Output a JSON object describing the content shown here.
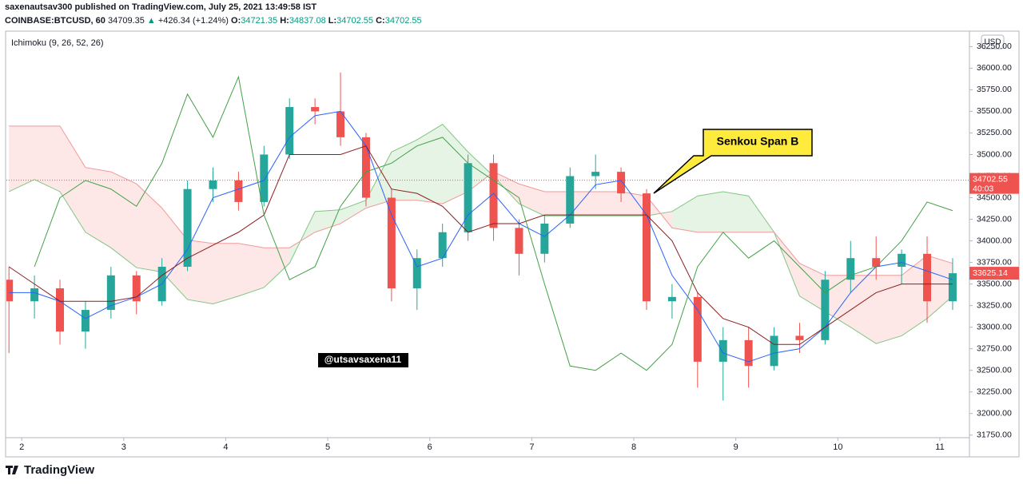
{
  "header": {
    "publisher": "saxenautsav300 published on TradingView.com, July 25, 2021 13:49:58 IST",
    "symbol": "COINBASE:BTCUSD, 60",
    "price": "34709.35",
    "arrow": "▲",
    "change": "+426.34 (+1.24%)",
    "o_label": "O:",
    "o": "34721.35",
    "h_label": "H:",
    "h": "34837.08",
    "l_label": "L:",
    "l": "34702.55",
    "c_label": "C:",
    "c": "34702.55"
  },
  "chart_data": {
    "type": "candlestick",
    "indicator": "Ichimoku (9, 26, 52, 26)",
    "currency": "USD",
    "annotation": "Senkou Span B",
    "watermark": "@utsavsaxena11",
    "brand": "TradingView",
    "grid": false,
    "up_color": "#26a69a",
    "down_color": "#ef5350",
    "x": [
      1.875,
      2.125,
      2.375,
      2.625,
      2.875,
      3.125,
      3.375,
      3.625,
      3.875,
      4.125,
      4.375,
      4.625,
      4.875,
      5.125,
      5.375,
      5.625,
      5.875,
      6.125,
      6.375,
      6.625,
      6.875,
      7.125,
      7.375,
      7.625,
      7.875,
      8.125,
      8.375,
      8.625,
      8.875,
      9.125,
      9.375,
      9.625,
      9.875,
      10.125,
      10.375,
      10.625,
      10.875,
      11.125
    ],
    "open": [
      33550,
      33300,
      33450,
      32950,
      33200,
      33600,
      33300,
      33700,
      34600,
      34700,
      34450,
      35000,
      35550,
      35500,
      35200,
      34500,
      33450,
      33800,
      34100,
      34900,
      34150,
      33850,
      34200,
      34750,
      34800,
      34550,
      33300,
      33350,
      32600,
      32850,
      32550,
      32900,
      32850,
      33550,
      33800,
      33700,
      33850,
      33300
    ],
    "high": [
      33700,
      33600,
      33550,
      33300,
      33700,
      33650,
      33800,
      34700,
      34850,
      34800,
      35100,
      35650,
      35650,
      35950,
      35250,
      34600,
      33900,
      34200,
      35000,
      35000,
      34250,
      34300,
      34850,
      35000,
      34850,
      34600,
      33500,
      33400,
      33000,
      33000,
      33000,
      33050,
      33650,
      34000,
      34050,
      33900,
      34050,
      33800
    ],
    "low": [
      32700,
      33100,
      32800,
      32750,
      33100,
      33150,
      33250,
      33650,
      34450,
      34350,
      34400,
      34950,
      35350,
      35100,
      34400,
      33300,
      33200,
      33700,
      34000,
      34000,
      33600,
      33750,
      34150,
      34600,
      34450,
      33200,
      33100,
      32300,
      32150,
      32300,
      32500,
      32700,
      32800,
      33400,
      33550,
      33500,
      33050,
      33200
    ],
    "close": [
      33300,
      33450,
      32950,
      33200,
      33600,
      33300,
      33700,
      34600,
      34700,
      34450,
      35000,
      35550,
      35500,
      35200,
      34500,
      33450,
      33800,
      34100,
      34900,
      34150,
      33850,
      34200,
      34750,
      34800,
      34550,
      33300,
      33350,
      32600,
      32850,
      32550,
      32900,
      32850,
      33550,
      33800,
      33700,
      33850,
      33300,
      33625
    ],
    "lines": [
      {
        "color": "#2962ff",
        "values": [
          33400,
          33400,
          33300,
          33100,
          33250,
          33350,
          33500,
          33900,
          34500,
          34600,
          34700,
          35200,
          35450,
          35500,
          35100,
          34300,
          33700,
          33800,
          34300,
          34550,
          34200,
          34050,
          34300,
          34650,
          34700,
          34300,
          33600,
          33200,
          32700,
          32600,
          32700,
          32750,
          33000,
          33400,
          33700,
          33750,
          33650,
          33550
        ]
      },
      {
        "color": "#8b1e1e",
        "values": [
          33700,
          33500,
          33300,
          33300,
          33300,
          33350,
          33600,
          33800,
          33950,
          34100,
          34300,
          35000,
          35000,
          35000,
          35100,
          34600,
          34550,
          34400,
          34100,
          34200,
          34200,
          34300,
          34300,
          34300,
          34300,
          34300,
          34000,
          33400,
          33100,
          33000,
          32800,
          32800,
          33000,
          33200,
          33400,
          33500,
          33500,
          33500
        ]
      },
      {
        "color": "#43a047",
        "values": [
          null,
          33700,
          34500,
          34700,
          34600,
          34400,
          34900,
          35700,
          35200,
          35900,
          34300,
          33550,
          33700,
          34400,
          34800,
          34900,
          35100,
          35200,
          34900,
          34700,
          34500,
          33500,
          32550,
          32500,
          32700,
          32500,
          32800,
          33700,
          34100,
          33800,
          34000,
          33700,
          33400,
          33600,
          33700,
          34000,
          34450,
          34350
        ]
      }
    ],
    "span_a": {
      "color": "#81c784",
      "fill": "rgba(76,175,80,0.14)",
      "values": [
        34570,
        34710,
        34570,
        34100,
        33920,
        33690,
        33640,
        33320,
        33270,
        33360,
        33460,
        33740,
        34340,
        34360,
        34470,
        35030,
        35170,
        35350,
        35030,
        34750,
        34430,
        34290,
        34290,
        34290,
        34290,
        34290,
        34340,
        34520,
        34570,
        34520,
        34100,
        33360,
        33180,
        33000,
        32810,
        32900,
        33100,
        33360
      ]
    },
    "span_b": {
      "color": "#ef9a9a",
      "fill": "rgba(244,67,54,0.12)",
      "values": [
        35330,
        35330,
        35330,
        34850,
        34800,
        34660,
        34380,
        34010,
        33970,
        33970,
        33920,
        33920,
        34100,
        34200,
        34380,
        34470,
        34470,
        34430,
        34570,
        34800,
        34660,
        34570,
        34570,
        34570,
        34570,
        34520,
        34150,
        34100,
        34100,
        34100,
        34100,
        33740,
        33600,
        33600,
        33600,
        33600,
        33830,
        33740
      ]
    },
    "last_price": {
      "value": 34702.55,
      "label": "34702.55",
      "countdown": "40:03"
    },
    "cursor_price": {
      "value": 33625.14,
      "label": "33625.14"
    },
    "xlim": [
      1.85,
      11.29
    ],
    "xticks": [
      2,
      3,
      4,
      5,
      6,
      7,
      8,
      9,
      10,
      11
    ],
    "ylim": [
      31720,
      36420
    ],
    "yticks": [
      {
        "value": 31750,
        "label": "31750.00"
      },
      {
        "value": 32000,
        "label": "32000.00"
      },
      {
        "value": 32250,
        "label": "32250.00"
      },
      {
        "value": 32500,
        "label": "32500.00"
      },
      {
        "value": 32750,
        "label": "32750.00"
      },
      {
        "value": 33000,
        "label": "33000.00"
      },
      {
        "value": 33250,
        "label": "33250.00"
      },
      {
        "value": 33500,
        "label": "33500.00"
      },
      {
        "value": 33750,
        "label": "33750.00"
      },
      {
        "value": 34000,
        "label": "34000.00"
      },
      {
        "value": 34250,
        "label": "34250.00"
      },
      {
        "value": 34500,
        "label": "34500.00"
      },
      {
        "value": 34750,
        "label": "34750.00"
      },
      {
        "value": 35000,
        "label": "35000.00"
      },
      {
        "value": 35250,
        "label": "35250.00"
      },
      {
        "value": 35500,
        "label": "35500.00"
      },
      {
        "value": 35750,
        "label": "35750.00"
      },
      {
        "value": 36000,
        "label": "36000.00"
      },
      {
        "value": 36250,
        "label": "36250.00"
      }
    ]
  }
}
